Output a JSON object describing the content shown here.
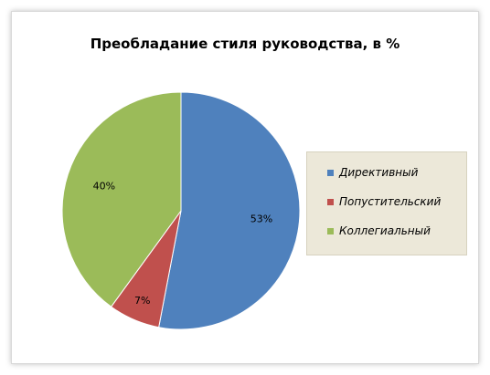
{
  "chart_data": {
    "type": "pie",
    "title": "Преобладание стиля руководства, в %",
    "categories": [
      "Директивный",
      "Попустительский",
      "Коллегиальный"
    ],
    "values": [
      53,
      7,
      40
    ],
    "data_labels": [
      "53%",
      "7%",
      "40%"
    ],
    "colors": [
      "#4f81bd",
      "#c0504d",
      "#9bbb59"
    ],
    "legend_position": "right"
  }
}
